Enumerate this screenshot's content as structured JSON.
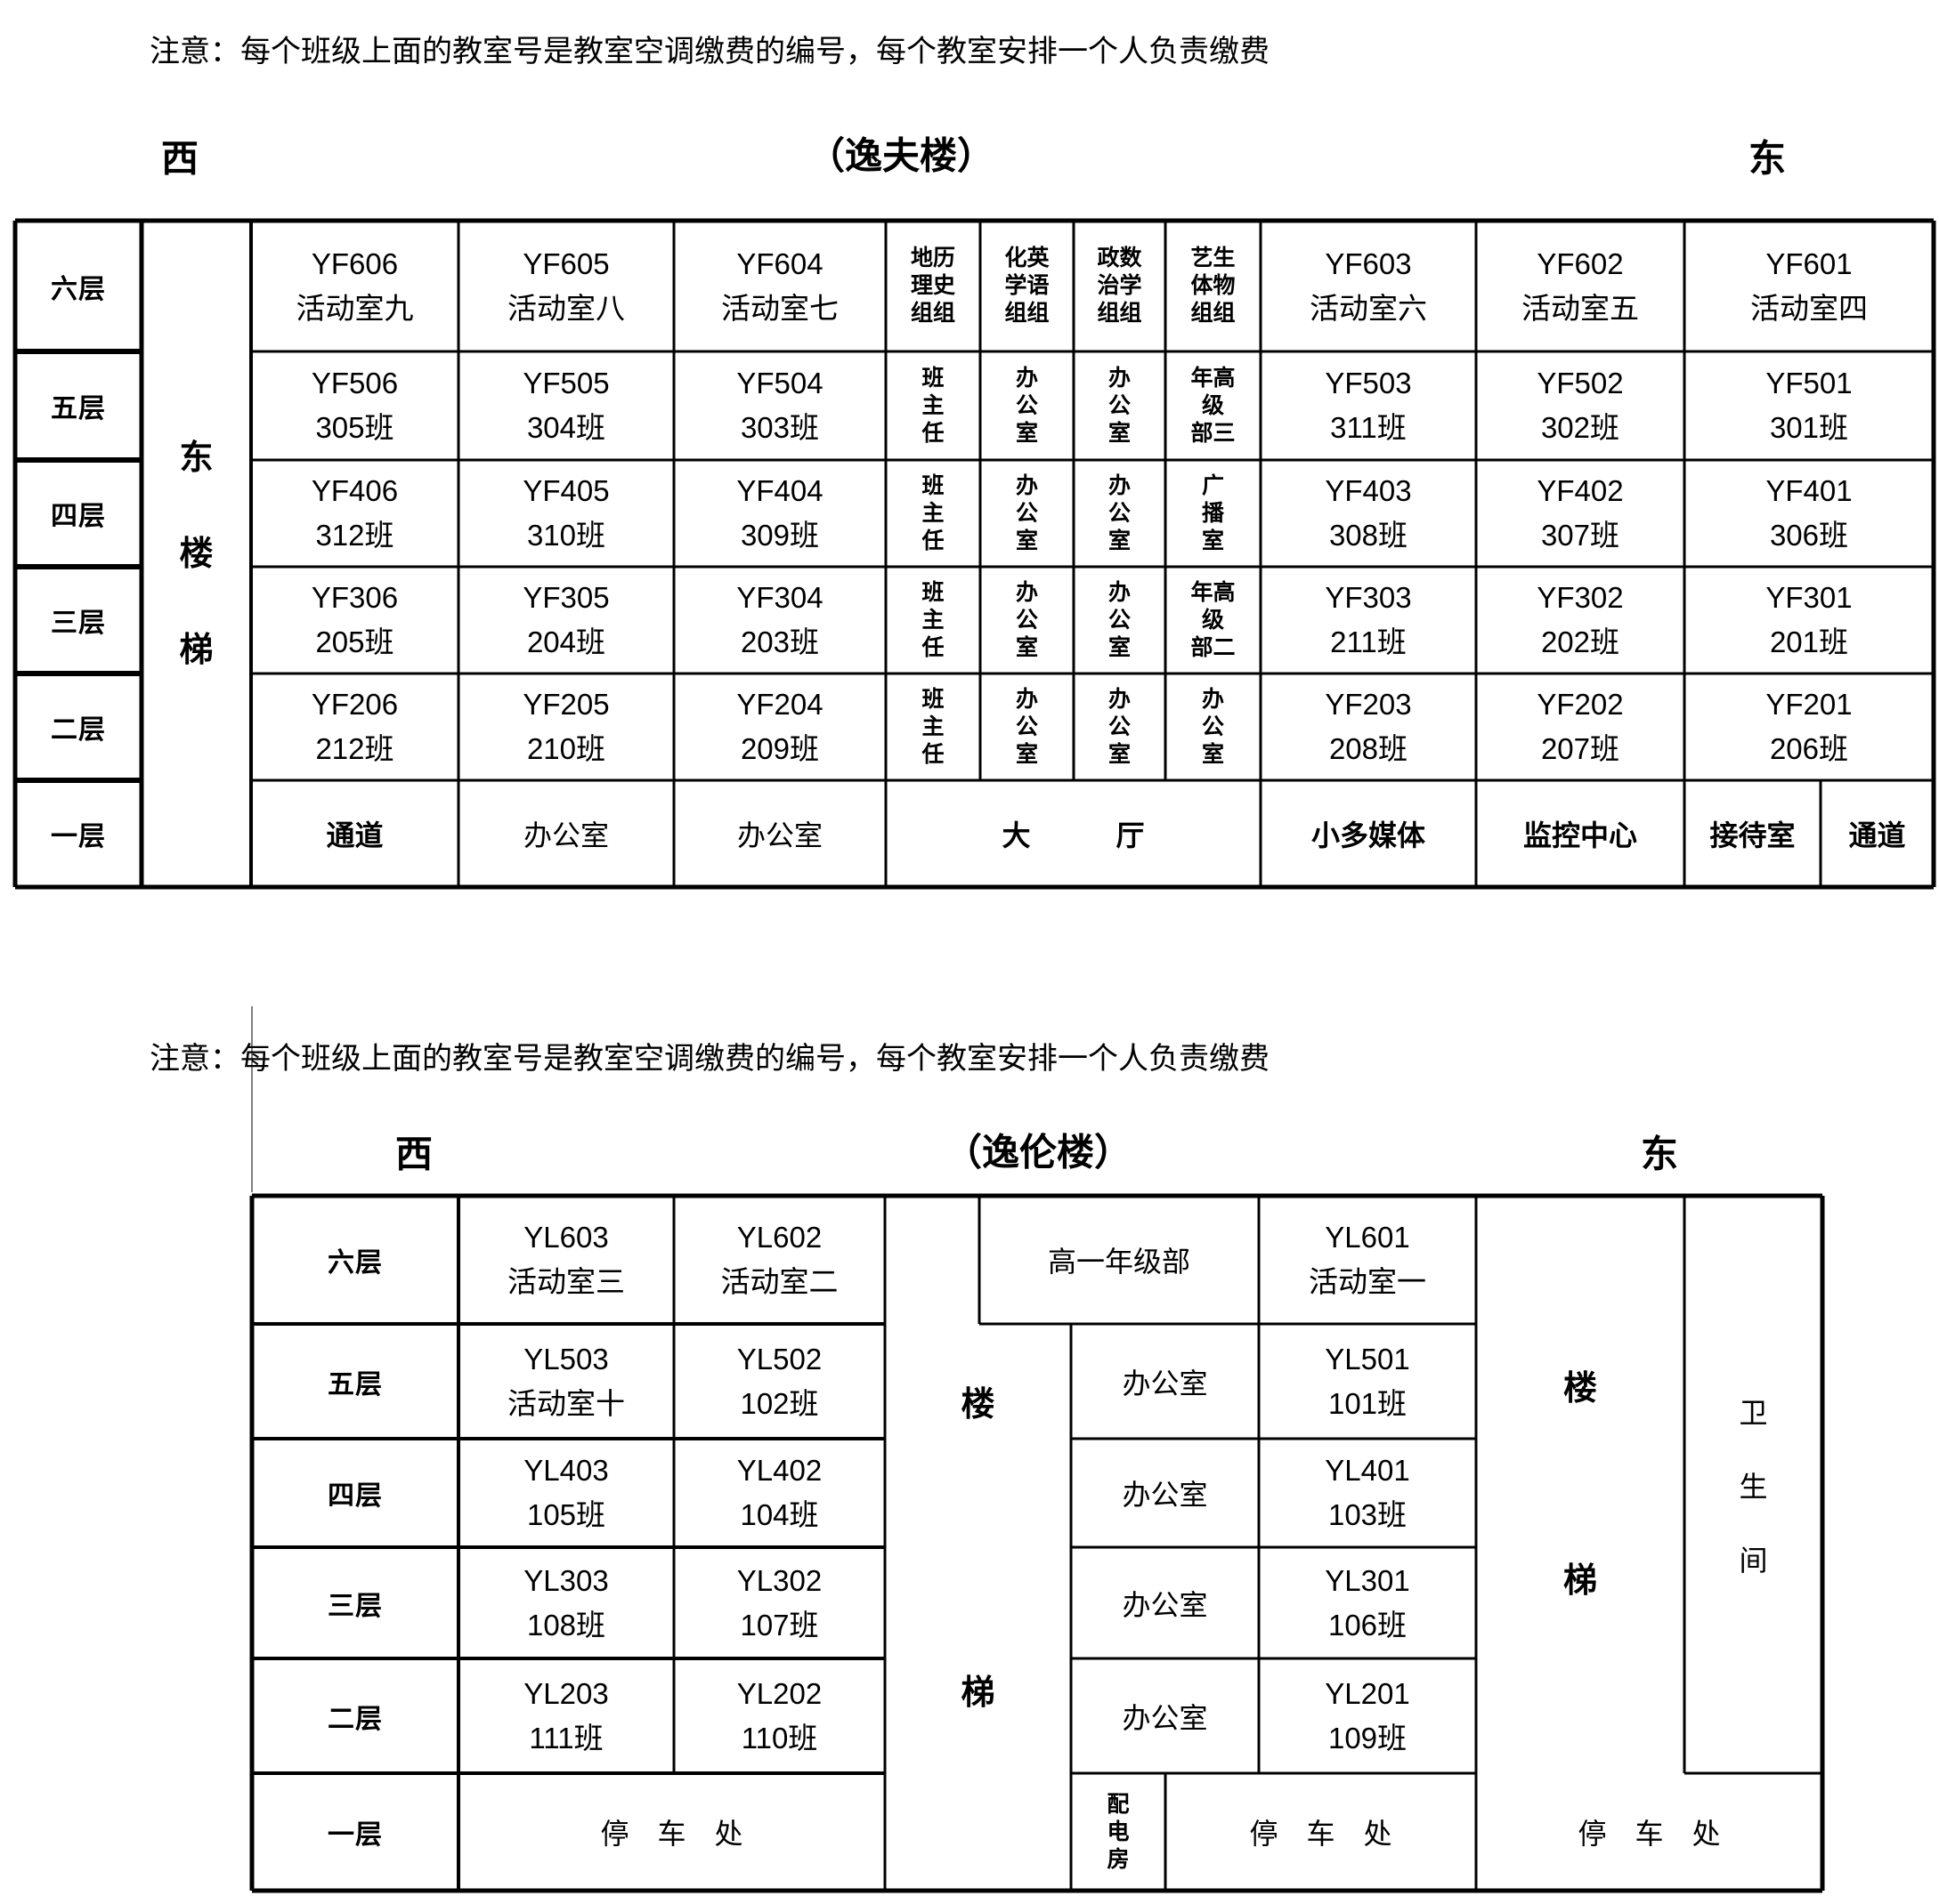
{
  "top": {
    "note": "注意：每个班级上面的教室号是教室空调缴费的编号，每个教室安排一个人负责缴费",
    "west": "西",
    "title": "（逸夫楼）",
    "east": "东",
    "floors": [
      "六层",
      "五层",
      "四层",
      "三层",
      "二层",
      "一层"
    ],
    "stair": "东\n楼\n梯",
    "rows": [
      [
        "YF606\n活动室九",
        "YF605\n活动室八",
        "YF604\n活动室七",
        "地历\n理史\n组组",
        "化英\n学语\n组组",
        "政数\n治学\n组组",
        "艺生\n体物\n组组",
        "YF603\n活动室六",
        "YF602\n活动室五",
        "YF601\n活动室四"
      ],
      [
        "YF506\n305班",
        "YF505\n304班",
        "YF504\n303班",
        "班\n主\n任",
        "办\n公\n室",
        "办\n公\n室",
        "年高\n级\n部三",
        "YF503\n311班",
        "YF502\n302班",
        "YF501\n301班"
      ],
      [
        "YF406\n312班",
        "YF405\n310班",
        "YF404\n309班",
        "班\n主\n任",
        "办\n公\n室",
        "办\n公\n室",
        "广\n播\n室",
        "YF403\n308班",
        "YF402\n307班",
        "YF401\n306班"
      ],
      [
        "YF306\n205班",
        "YF305\n204班",
        "YF304\n203班",
        "班\n主\n任",
        "办\n公\n室",
        "办\n公\n室",
        "年高\n级\n部二",
        "YF303\n211班",
        "YF302\n202班",
        "YF301\n201班"
      ],
      [
        "YF206\n212班",
        "YF205\n210班",
        "YF204\n209班",
        "班\n主\n任",
        "办\n公\n室",
        "办\n公\n室",
        "办\n公\n室",
        "YF203\n208班",
        "YF202\n207班",
        "YF201\n206班"
      ]
    ],
    "ground": [
      "通道",
      "办公室",
      "办公室",
      "大　　　厅",
      "小多媒体",
      "监控中心",
      "接待室",
      "通道"
    ]
  },
  "bottom": {
    "note": "注意：每个班级上面的教室号是教室空调缴费的编号，每个教室安排一个人负责缴费",
    "west": "西",
    "title": "（逸伦楼）",
    "east": "东",
    "floors": [
      "六层",
      "五层",
      "四层",
      "三层",
      "二层",
      "一层"
    ],
    "left_rows": [
      [
        "YL603\n活动室三",
        "YL602\n活动室二"
      ],
      [
        "YL503\n活动室十",
        "YL502\n102班"
      ],
      [
        "YL403\n105班",
        "YL402\n104班"
      ],
      [
        "YL303\n108班",
        "YL302\n107班"
      ],
      [
        "YL203\n111班",
        "YL202\n110班"
      ]
    ],
    "stair_mid": "楼\n\n\n梯",
    "grade_office": "高一年级部",
    "offices": [
      "办公室",
      "办公室",
      "办公室",
      "办公室"
    ],
    "right_codes": [
      "YL601\n活动室一",
      "YL501\n101班",
      "YL401\n103班",
      "YL301\n106班",
      "YL201\n109班"
    ],
    "stair_right": "楼\n\n梯",
    "toilet": "卫\n\n生\n\n间",
    "power_room": "配\n电\n房",
    "parking": [
      "停　车　处",
      "停　车　处",
      "停　车　处"
    ]
  }
}
